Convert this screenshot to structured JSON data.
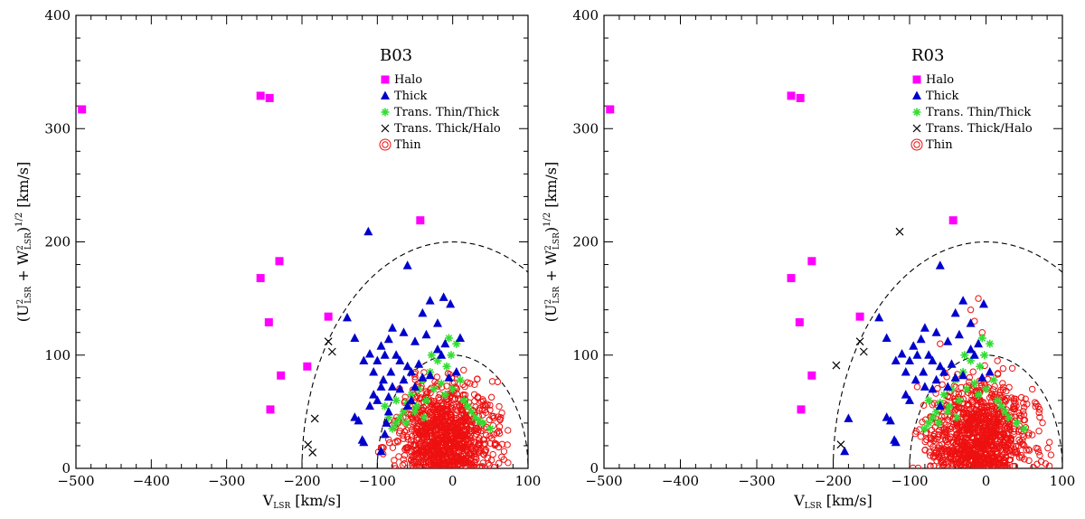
{
  "chart_data": [
    {
      "type": "scatter",
      "title": "B03",
      "xlabel": "V_LSR [km/s]",
      "ylabel": "(U²_LSR + W²_LSR)^1/2 [km/s]",
      "xlim": [
        -500,
        100
      ],
      "ylim": [
        0,
        400
      ],
      "x_ticks": [
        "−500",
        "−400",
        "−300",
        "−200",
        "−100",
        "0",
        "100"
      ],
      "y_ticks": [
        "0",
        "100",
        "200",
        "300",
        "400"
      ],
      "legend_position": "top-right",
      "curves": [
        {
          "style": "dashed",
          "radius": 100,
          "center_x": 0
        },
        {
          "style": "dashed",
          "radius": 200,
          "center_x": 0
        }
      ],
      "series": [
        {
          "name": "Halo",
          "marker": "square",
          "color": "#ff00ff",
          "points": [
            [
              -492,
              317
            ],
            [
              -255,
              329
            ],
            [
              -243,
              327
            ],
            [
              -230,
              183
            ],
            [
              -255,
              168
            ],
            [
              -244,
              129
            ],
            [
              -228,
              82
            ],
            [
              -242,
              52
            ],
            [
              -165,
              134
            ],
            [
              -193,
              90
            ],
            [
              -43,
              219
            ]
          ]
        },
        {
          "name": "Thick",
          "marker": "triangle",
          "color": "#0000cc",
          "points": [
            [
              -112,
              209
            ],
            [
              -60,
              179
            ],
            [
              -30,
              148
            ],
            [
              -12,
              151
            ],
            [
              -3,
              145
            ],
            [
              -20,
              128
            ],
            [
              -40,
              137
            ],
            [
              -35,
              118
            ],
            [
              -50,
              112
            ],
            [
              -65,
              120
            ],
            [
              -80,
              124
            ],
            [
              -85,
              114
            ],
            [
              -95,
              108
            ],
            [
              -110,
              101
            ],
            [
              -118,
              95
            ],
            [
              -130,
              115
            ],
            [
              -140,
              133
            ],
            [
              -90,
              100
            ],
            [
              -75,
              100
            ],
            [
              -70,
              95
            ],
            [
              -60,
              90
            ],
            [
              -55,
              85
            ],
            [
              -45,
              92
            ],
            [
              -100,
              95
            ],
            [
              -105,
              85
            ],
            [
              -82,
              85
            ],
            [
              -92,
              78
            ],
            [
              -80,
              72
            ],
            [
              -85,
              63
            ],
            [
              -70,
              70
            ],
            [
              -65,
              78
            ],
            [
              -50,
              72
            ],
            [
              -40,
              80
            ],
            [
              -30,
              82
            ],
            [
              -95,
              72
            ],
            [
              -100,
              60
            ],
            [
              -105,
              65
            ],
            [
              -110,
              55
            ],
            [
              -125,
              42
            ],
            [
              -130,
              45
            ],
            [
              -120,
              25
            ],
            [
              -118,
              23
            ],
            [
              -90,
              30
            ],
            [
              -95,
              15
            ],
            [
              -85,
              50
            ],
            [
              -88,
              40
            ],
            [
              -20,
              105
            ],
            [
              -10,
              110
            ],
            [
              10,
              115
            ],
            [
              5,
              85
            ],
            [
              -5,
              80
            ],
            [
              -15,
              100
            ],
            [
              -60,
              55
            ],
            [
              -55,
              60
            ]
          ]
        },
        {
          "name": "Trans. Thin/Thick",
          "marker": "star",
          "color": "#33dd33",
          "points": [
            [
              -5,
              115
            ],
            [
              5,
              110
            ],
            [
              -20,
              95
            ],
            [
              -30,
              85
            ],
            [
              -40,
              78
            ],
            [
              -45,
              70
            ],
            [
              -55,
              65
            ],
            [
              -60,
              58
            ],
            [
              -65,
              50
            ],
            [
              -70,
              45
            ],
            [
              -75,
              40
            ],
            [
              -80,
              35
            ],
            [
              -85,
              45
            ],
            [
              -50,
              50
            ],
            [
              -35,
              60
            ],
            [
              -25,
              70
            ],
            [
              -15,
              75
            ],
            [
              -10,
              65
            ],
            [
              0,
              70
            ],
            [
              10,
              78
            ],
            [
              15,
              60
            ],
            [
              20,
              55
            ],
            [
              25,
              50
            ],
            [
              40,
              40
            ],
            [
              50,
              35
            ],
            [
              -90,
              55
            ],
            [
              -75,
              60
            ],
            [
              -62,
              40
            ],
            [
              -48,
              55
            ],
            [
              -38,
              45
            ],
            [
              30,
              45
            ],
            [
              35,
              42
            ],
            [
              -8,
              90
            ],
            [
              -2,
              100
            ],
            [
              -28,
              100
            ]
          ]
        },
        {
          "name": "Trans. Thick/Halo",
          "marker": "cross",
          "color": "#000000",
          "points": [
            [
              -165,
              112
            ],
            [
              -160,
              103
            ],
            [
              -183,
              44
            ],
            [
              -192,
              21
            ],
            [
              -186,
              14
            ]
          ]
        },
        {
          "name": "Thin",
          "marker": "circle",
          "color": "#ee1111",
          "cluster": {
            "center_x": -10,
            "center_y": 28,
            "spread_x": 32,
            "spread_y": 24,
            "count": 1000,
            "max_radius": 100
          }
        }
      ]
    },
    {
      "type": "scatter",
      "title": "R03",
      "xlabel": "V_LSR [km/s]",
      "ylabel": "(U²_LSR + W²_LSR)^1/2 [km/s]",
      "xlim": [
        -500,
        100
      ],
      "ylim": [
        0,
        400
      ],
      "x_ticks": [
        "−500",
        "−400",
        "−300",
        "−200",
        "−100",
        "0",
        "100"
      ],
      "y_ticks": [
        "0",
        "100",
        "200",
        "300",
        "400"
      ],
      "legend_position": "top-right",
      "curves": [
        {
          "style": "dashed",
          "radius": 100,
          "center_x": 0
        },
        {
          "style": "dashed",
          "radius": 200,
          "center_x": 0
        }
      ],
      "series": [
        {
          "name": "Halo",
          "marker": "square",
          "color": "#ff00ff",
          "points": [
            [
              -492,
              317
            ],
            [
              -255,
              329
            ],
            [
              -243,
              327
            ],
            [
              -228,
              183
            ],
            [
              -255,
              168
            ],
            [
              -244,
              129
            ],
            [
              -228,
              82
            ],
            [
              -242,
              52
            ],
            [
              -165,
              134
            ],
            [
              -43,
              219
            ]
          ]
        },
        {
          "name": "Thick",
          "marker": "triangle",
          "color": "#0000cc",
          "points": [
            [
              -60,
              179
            ],
            [
              -30,
              148
            ],
            [
              -3,
              145
            ],
            [
              -20,
              128
            ],
            [
              -40,
              137
            ],
            [
              -35,
              118
            ],
            [
              -50,
              112
            ],
            [
              -65,
              120
            ],
            [
              -80,
              124
            ],
            [
              -85,
              114
            ],
            [
              -95,
              108
            ],
            [
              -110,
              101
            ],
            [
              -118,
              95
            ],
            [
              -130,
              115
            ],
            [
              -140,
              133
            ],
            [
              -90,
              100
            ],
            [
              -75,
              100
            ],
            [
              -70,
              95
            ],
            [
              -60,
              90
            ],
            [
              -55,
              85
            ],
            [
              -45,
              92
            ],
            [
              -100,
              95
            ],
            [
              -105,
              85
            ],
            [
              -82,
              85
            ],
            [
              -92,
              78
            ],
            [
              -80,
              72
            ],
            [
              -70,
              70
            ],
            [
              -65,
              78
            ],
            [
              -50,
              72
            ],
            [
              -40,
              80
            ],
            [
              -30,
              82
            ],
            [
              -100,
              60
            ],
            [
              -105,
              65
            ],
            [
              -125,
              42
            ],
            [
              -130,
              45
            ],
            [
              -120,
              25
            ],
            [
              -118,
              23
            ],
            [
              -180,
              44
            ],
            [
              -185,
              15
            ],
            [
              -20,
              105
            ],
            [
              -10,
              110
            ],
            [
              5,
              85
            ],
            [
              -5,
              80
            ],
            [
              -15,
              100
            ],
            [
              -60,
              55
            ]
          ]
        },
        {
          "name": "Trans. Thin/Thick",
          "marker": "star",
          "color": "#33dd33",
          "points": [
            [
              -5,
              115
            ],
            [
              5,
              110
            ],
            [
              -20,
              95
            ],
            [
              -30,
              85
            ],
            [
              -40,
              78
            ],
            [
              -45,
              70
            ],
            [
              -55,
              65
            ],
            [
              -60,
              58
            ],
            [
              -65,
              50
            ],
            [
              -70,
              45
            ],
            [
              -75,
              40
            ],
            [
              -80,
              35
            ],
            [
              -50,
              50
            ],
            [
              -35,
              60
            ],
            [
              -25,
              70
            ],
            [
              -15,
              75
            ],
            [
              -10,
              65
            ],
            [
              0,
              70
            ],
            [
              10,
              78
            ],
            [
              15,
              60
            ],
            [
              20,
              55
            ],
            [
              25,
              50
            ],
            [
              40,
              40
            ],
            [
              50,
              35
            ],
            [
              -75,
              60
            ],
            [
              -62,
              40
            ],
            [
              -48,
              55
            ],
            [
              -38,
              45
            ],
            [
              30,
              45
            ],
            [
              -8,
              90
            ],
            [
              -2,
              100
            ],
            [
              -28,
              100
            ]
          ]
        },
        {
          "name": "Trans. Thick/Halo",
          "marker": "cross",
          "color": "#000000",
          "points": [
            [
              -113,
              209
            ],
            [
              -196,
              91
            ],
            [
              -165,
              112
            ],
            [
              -160,
              103
            ],
            [
              -190,
              21
            ]
          ]
        },
        {
          "name": "Thin",
          "marker": "circle",
          "color": "#ee1111",
          "cluster": {
            "center_x": -10,
            "center_y": 28,
            "spread_x": 32,
            "spread_y": 24,
            "count": 1000,
            "max_radius": 100,
            "outliers": [
              [
                -10,
                150
              ],
              [
                -20,
                140
              ],
              [
                -5,
                120
              ],
              [
                -60,
                110
              ],
              [
                15,
                95
              ],
              [
                -90,
                72
              ],
              [
                -15,
                130
              ]
            ]
          }
        }
      ]
    }
  ]
}
